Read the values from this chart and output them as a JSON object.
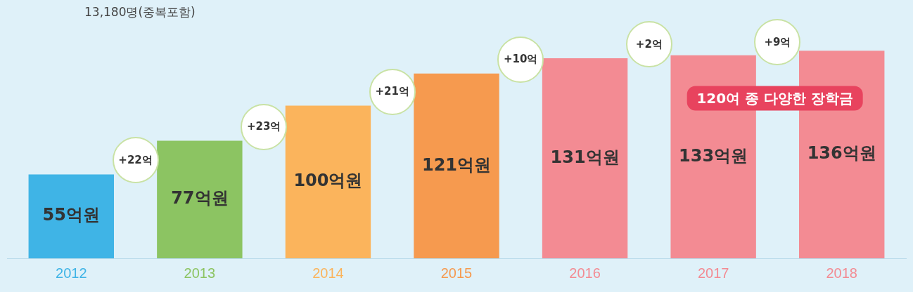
{
  "chart_data": {
    "type": "bar",
    "categories": [
      "2012",
      "2013",
      "2014",
      "2015",
      "2016",
      "2017",
      "2018"
    ],
    "values": [
      55,
      77,
      100,
      121,
      131,
      133,
      136
    ],
    "colors": [
      "#3fb4e6",
      "#8cc462",
      "#fbb45c",
      "#f69a4f",
      "#f38b93",
      "#f38b93",
      "#f38b93"
    ],
    "value_labels": [
      "55억원",
      "77억원",
      "100억원",
      "121억원",
      "131억원",
      "133억원",
      "136억원"
    ],
    "annotations": [
      "13,180명(중복포함)",
      "+22억",
      "+23억",
      "+21억",
      "+10억",
      "+2억",
      "+9억",
      "120여 종 다양한 장학금"
    ],
    "legend": false,
    "grid": false
  }
}
